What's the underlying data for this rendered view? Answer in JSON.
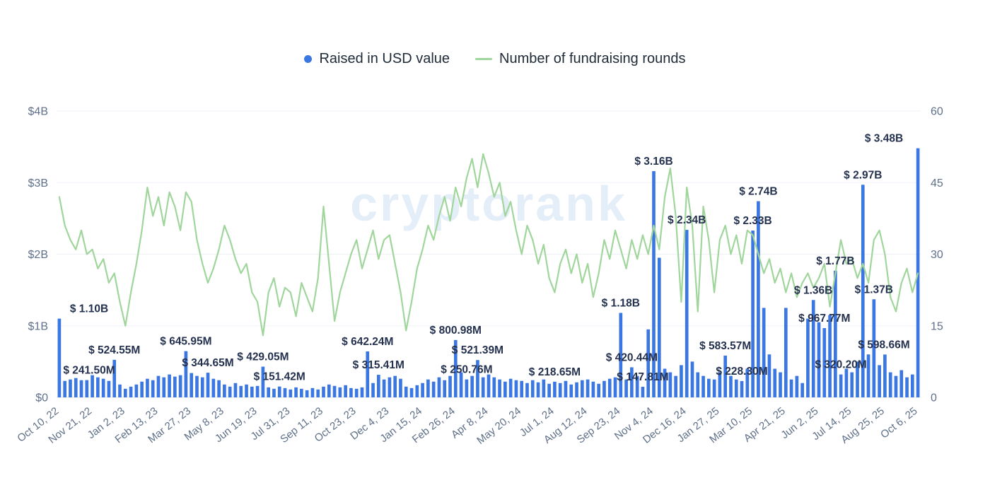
{
  "legend": {
    "raised_label": "Raised in USD value",
    "rounds_label": "Number of fundraising rounds"
  },
  "watermark": "cryptorank",
  "colors": {
    "bar": "#3b77e3",
    "line": "#a0d69c",
    "annotation": "#24314f",
    "axis_text": "#5f7089",
    "grid": "#eef2f7",
    "axis_line": "#e2e8f0",
    "watermark": "#cfe1f3",
    "background": "#ffffff"
  },
  "chart_data": {
    "type": "bar",
    "title": "",
    "x_tick_labels": [
      "Oct 10, 22",
      "Nov 21, 22",
      "Jan 2, 23",
      "Feb 13, 23",
      "Mar 27, 23",
      "May 8, 23",
      "Jun 19, 23",
      "Jul 31, 23",
      "Sep 11, 23",
      "Oct 23, 23",
      "Dec 4, 23",
      "Jan 15, 24",
      "Feb 26, 24",
      "Apr 8, 24",
      "May 20, 24",
      "Jul 1, 24",
      "Aug 12, 24",
      "Sep 23, 24",
      "Nov 4, 24",
      "Dec 16, 24",
      "Jan 27, 25",
      "Mar 10, 25",
      "Apr 21, 25",
      "Jun 2, 25",
      "Jul 14, 25",
      "Aug 25, 25",
      "Oct 6, 25"
    ],
    "x_tick_every": 6,
    "left_axis": {
      "ticks": [
        "$0",
        "$1B",
        "$2B",
        "$3B",
        "$4B"
      ],
      "min": 0,
      "max": 4000,
      "unit": "$M"
    },
    "right_axis": {
      "ticks": [
        0,
        15,
        30,
        45,
        60
      ],
      "min": 0,
      "max": 60
    },
    "series": [
      {
        "name": "Raised in USD value",
        "type": "bar",
        "unit": "$M",
        "values": [
          1100,
          230,
          250,
          270,
          240,
          241.5,
          310,
          280,
          260,
          230,
          524.55,
          180,
          120,
          150,
          180,
          220,
          260,
          240,
          300,
          280,
          320,
          290,
          310,
          645.95,
          340,
          300,
          280,
          344.65,
          260,
          240,
          180,
          150,
          200,
          160,
          180,
          150,
          160,
          429.05,
          140,
          120,
          151.42,
          130,
          110,
          140,
          120,
          100,
          130,
          110,
          150,
          180,
          160,
          140,
          170,
          130,
          120,
          140,
          642.24,
          200,
          315.41,
          250,
          280,
          300,
          260,
          150,
          130,
          170,
          200,
          250,
          220,
          280,
          240,
          300,
          800.98,
          350,
          250.76,
          300,
          521.39,
          280,
          320,
          280,
          250,
          220,
          260,
          240,
          230,
          200,
          240,
          210,
          250,
          190,
          218.65,
          200,
          230,
          180,
          210,
          240,
          250,
          220,
          190,
          230,
          260,
          280,
          1180,
          250,
          420.44,
          300,
          147.81,
          950,
          3160,
          1950,
          400,
          350,
          300,
          450,
          2340,
          500,
          350,
          300,
          260,
          250,
          350,
          583.57,
          300,
          250,
          228.3,
          400,
          2330,
          2740,
          1250,
          600,
          400,
          350,
          1250,
          250,
          300,
          200,
          1100,
          1360,
          1050,
          967.77,
          1150,
          1770,
          320.2,
          400,
          350,
          500,
          2970,
          600,
          1370,
          450,
          598.66,
          350,
          300,
          380,
          280,
          320,
          3480
        ]
      },
      {
        "name": "Number of fundraising rounds",
        "type": "line",
        "values": [
          42,
          36,
          33,
          31,
          35,
          30,
          31,
          27,
          29,
          24,
          26,
          20,
          15,
          22,
          28,
          35,
          44,
          38,
          42,
          36,
          43,
          40,
          35,
          43,
          41,
          33,
          28,
          24,
          27,
          31,
          36,
          33,
          29,
          26,
          28,
          22,
          20,
          13,
          22,
          25,
          19,
          23,
          22,
          17,
          24,
          21,
          18,
          25,
          40,
          28,
          16,
          22,
          26,
          30,
          33,
          27,
          31,
          35,
          29,
          33,
          34,
          28,
          22,
          14,
          20,
          27,
          31,
          36,
          33,
          38,
          42,
          37,
          44,
          40,
          46,
          50,
          44,
          51,
          47,
          42,
          45,
          38,
          41,
          35,
          30,
          36,
          33,
          28,
          32,
          25,
          22,
          28,
          31,
          26,
          30,
          24,
          28,
          21,
          26,
          33,
          29,
          35,
          31,
          27,
          33,
          29,
          34,
          30,
          36,
          31,
          42,
          48,
          38,
          20,
          44,
          36,
          18,
          40,
          33,
          22,
          33,
          36,
          30,
          34,
          28,
          35,
          34,
          30,
          26,
          29,
          24,
          27,
          22,
          26,
          21,
          24,
          26,
          23,
          25,
          28,
          19,
          26,
          33,
          28,
          29,
          25,
          28,
          24,
          33,
          35,
          30,
          21,
          18,
          24,
          27,
          22,
          26
        ]
      }
    ],
    "annotations": [
      {
        "i": 0,
        "label": "$ 1.10B"
      },
      {
        "i": 5,
        "label": "$ 241.50M"
      },
      {
        "i": 10,
        "label": "$ 524.55M"
      },
      {
        "i": 23,
        "label": "$ 645.95M"
      },
      {
        "i": 27,
        "label": "$ 344.65M"
      },
      {
        "i": 37,
        "label": "$ 429.05M"
      },
      {
        "i": 40,
        "label": "$ 151.42M"
      },
      {
        "i": 56,
        "label": "$ 642.24M"
      },
      {
        "i": 58,
        "label": "$ 315.41M"
      },
      {
        "i": 72,
        "label": "$ 800.98M"
      },
      {
        "i": 74,
        "label": "$ 250.76M"
      },
      {
        "i": 76,
        "label": "$ 521.39M"
      },
      {
        "i": 90,
        "label": "$ 218.65M"
      },
      {
        "i": 102,
        "label": "$ 1.18B"
      },
      {
        "i": 104,
        "label": "$ 420.44M"
      },
      {
        "i": 106,
        "label": "$ 147.81M"
      },
      {
        "i": 108,
        "label": "$ 3.16B"
      },
      {
        "i": 114,
        "label": "$ 2.34B"
      },
      {
        "i": 121,
        "label": "$ 583.57M"
      },
      {
        "i": 124,
        "label": "$ 228.30M"
      },
      {
        "i": 126,
        "label": "$ 2.33B"
      },
      {
        "i": 127,
        "label": "$ 2.74B"
      },
      {
        "i": 137,
        "label": "$ 1.36B"
      },
      {
        "i": 139,
        "label": "$ 967.77M"
      },
      {
        "i": 141,
        "label": "$ 1.77B"
      },
      {
        "i": 142,
        "label": "$ 320.20M"
      },
      {
        "i": 146,
        "label": "$ 2.97B"
      },
      {
        "i": 148,
        "label": "$ 1.37B"
      },
      {
        "i": 150,
        "label": "$ 598.66M"
      },
      {
        "i": 156,
        "label": "$ 3.48B"
      }
    ],
    "legend_position": "top-center",
    "grid": "horizontal-only"
  }
}
